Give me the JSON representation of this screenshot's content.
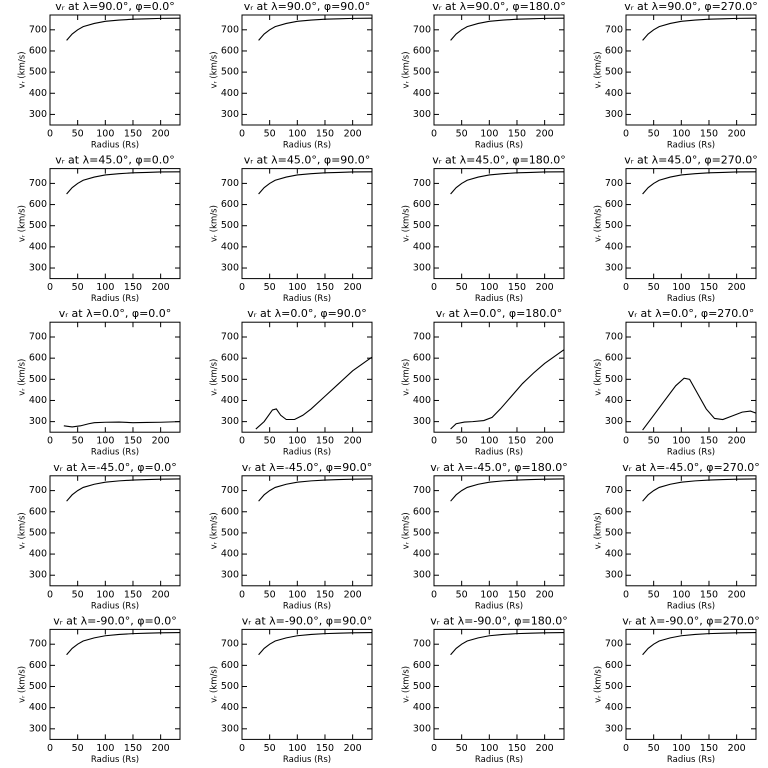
{
  "chart_data": [
    {
      "type": "line",
      "title": "vᵣ at λ=90.0°, φ=0.0°",
      "xlabel": "Radius (Rs)",
      "ylabel": "vᵣ (km/s)",
      "x": [
        30,
        40,
        50,
        60,
        80,
        100,
        125,
        150,
        175,
        200,
        235
      ],
      "values": [
        650,
        680,
        700,
        715,
        730,
        740,
        746,
        750,
        752,
        754,
        755
      ],
      "color": "#000000",
      "xlim": [
        0,
        235
      ],
      "ylim": [
        250,
        770
      ],
      "xticks": [
        0,
        50,
        100,
        150,
        200
      ],
      "yticks": [
        300,
        400,
        500,
        600,
        700
      ]
    },
    {
      "type": "line",
      "title": "vᵣ at λ=90.0°, φ=90.0°",
      "xlabel": "Radius (Rs)",
      "ylabel": "vᵣ (km/s)",
      "x": [
        30,
        40,
        50,
        60,
        80,
        100,
        125,
        150,
        175,
        200,
        235
      ],
      "values": [
        650,
        680,
        700,
        715,
        730,
        740,
        746,
        750,
        752,
        754,
        755
      ],
      "color": "#000000",
      "xlim": [
        0,
        235
      ],
      "ylim": [
        250,
        770
      ],
      "xticks": [
        0,
        50,
        100,
        150,
        200
      ],
      "yticks": [
        300,
        400,
        500,
        600,
        700
      ]
    },
    {
      "type": "line",
      "title": "vᵣ at λ=90.0°, φ=180.0°",
      "xlabel": "Radius (Rs)",
      "ylabel": "vᵣ (km/s)",
      "x": [
        30,
        40,
        50,
        60,
        80,
        100,
        125,
        150,
        175,
        200,
        235
      ],
      "values": [
        650,
        680,
        700,
        715,
        730,
        740,
        746,
        750,
        752,
        754,
        755
      ],
      "color": "#000000",
      "xlim": [
        0,
        235
      ],
      "ylim": [
        250,
        770
      ],
      "xticks": [
        0,
        50,
        100,
        150,
        200
      ],
      "yticks": [
        300,
        400,
        500,
        600,
        700
      ]
    },
    {
      "type": "line",
      "title": "vᵣ at λ=90.0°, φ=270.0°",
      "xlabel": "Radius (Rs)",
      "ylabel": "vᵣ (km/s)",
      "x": [
        30,
        40,
        50,
        60,
        80,
        100,
        125,
        150,
        175,
        200,
        235
      ],
      "values": [
        650,
        680,
        700,
        715,
        730,
        740,
        746,
        750,
        752,
        754,
        755
      ],
      "color": "#000000",
      "xlim": [
        0,
        235
      ],
      "ylim": [
        250,
        770
      ],
      "xticks": [
        0,
        50,
        100,
        150,
        200
      ],
      "yticks": [
        300,
        400,
        500,
        600,
        700
      ]
    },
    {
      "type": "line",
      "title": "vᵣ at λ=45.0°, φ=0.0°",
      "xlabel": "Radius (Rs)",
      "ylabel": "vᵣ (km/s)",
      "x": [
        30,
        40,
        50,
        60,
        80,
        100,
        125,
        150,
        175,
        200,
        235
      ],
      "values": [
        650,
        680,
        700,
        715,
        730,
        740,
        746,
        750,
        752,
        754,
        755
      ],
      "color": "#000000",
      "xlim": [
        0,
        235
      ],
      "ylim": [
        250,
        770
      ],
      "xticks": [
        0,
        50,
        100,
        150,
        200
      ],
      "yticks": [
        300,
        400,
        500,
        600,
        700
      ]
    },
    {
      "type": "line",
      "title": "vᵣ at λ=45.0°, φ=90.0°",
      "xlabel": "Radius (Rs)",
      "ylabel": "vᵣ (km/s)",
      "x": [
        30,
        40,
        50,
        60,
        80,
        100,
        125,
        150,
        175,
        200,
        235
      ],
      "values": [
        650,
        680,
        700,
        715,
        730,
        740,
        746,
        750,
        752,
        754,
        755
      ],
      "color": "#000000",
      "xlim": [
        0,
        235
      ],
      "ylim": [
        250,
        770
      ],
      "xticks": [
        0,
        50,
        100,
        150,
        200
      ],
      "yticks": [
        300,
        400,
        500,
        600,
        700
      ]
    },
    {
      "type": "line",
      "title": "vᵣ at λ=45.0°, φ=180.0°",
      "xlabel": "Radius (Rs)",
      "ylabel": "vᵣ (km/s)",
      "x": [
        30,
        40,
        50,
        60,
        80,
        100,
        125,
        150,
        175,
        200,
        235
      ],
      "values": [
        650,
        680,
        700,
        715,
        730,
        740,
        746,
        750,
        752,
        754,
        755
      ],
      "color": "#000000",
      "xlim": [
        0,
        235
      ],
      "ylim": [
        250,
        770
      ],
      "xticks": [
        0,
        50,
        100,
        150,
        200
      ],
      "yticks": [
        300,
        400,
        500,
        600,
        700
      ]
    },
    {
      "type": "line",
      "title": "vᵣ at λ=45.0°, φ=270.0°",
      "xlabel": "Radius (Rs)",
      "ylabel": "vᵣ (km/s)",
      "x": [
        30,
        40,
        50,
        60,
        80,
        100,
        125,
        150,
        175,
        200,
        235
      ],
      "values": [
        650,
        680,
        700,
        715,
        730,
        740,
        746,
        750,
        752,
        754,
        755
      ],
      "color": "#000000",
      "xlim": [
        0,
        235
      ],
      "ylim": [
        250,
        770
      ],
      "xticks": [
        0,
        50,
        100,
        150,
        200
      ],
      "yticks": [
        300,
        400,
        500,
        600,
        700
      ]
    },
    {
      "type": "line",
      "title": "vᵣ at λ=0.0°, φ=0.0°",
      "xlabel": "Radius (Rs)",
      "ylabel": "vᵣ (km/s)",
      "x": [
        25,
        40,
        55,
        70,
        80,
        100,
        125,
        150,
        175,
        200,
        235
      ],
      "values": [
        280,
        275,
        280,
        290,
        295,
        297,
        298,
        295,
        296,
        297,
        300
      ],
      "color": "#000000",
      "xlim": [
        0,
        235
      ],
      "ylim": [
        250,
        770
      ],
      "xticks": [
        0,
        50,
        100,
        150,
        200
      ],
      "yticks": [
        300,
        400,
        500,
        600,
        700
      ]
    },
    {
      "type": "line",
      "title": "vᵣ at λ=0.0°, φ=90.0°",
      "xlabel": "Radius (Rs)",
      "ylabel": "vᵣ (km/s)",
      "x": [
        25,
        40,
        55,
        62,
        70,
        80,
        95,
        110,
        125,
        150,
        175,
        200,
        235
      ],
      "values": [
        265,
        300,
        355,
        360,
        330,
        310,
        310,
        330,
        360,
        420,
        480,
        540,
        605
      ],
      "color": "#000000",
      "xlim": [
        0,
        235
      ],
      "ylim": [
        250,
        770
      ],
      "xticks": [
        0,
        50,
        100,
        150,
        200
      ],
      "yticks": [
        300,
        400,
        500,
        600,
        700
      ]
    },
    {
      "type": "line",
      "title": "vᵣ at λ=0.0°, φ=180.0°",
      "xlabel": "Radius (Rs)",
      "ylabel": "vᵣ (km/s)",
      "x": [
        30,
        40,
        55,
        70,
        90,
        105,
        120,
        140,
        160,
        180,
        200,
        235
      ],
      "values": [
        265,
        290,
        298,
        300,
        305,
        320,
        360,
        420,
        480,
        530,
        575,
        640
      ],
      "color": "#000000",
      "xlim": [
        0,
        235
      ],
      "ylim": [
        250,
        770
      ],
      "xticks": [
        0,
        50,
        100,
        150,
        200
      ],
      "yticks": [
        300,
        400,
        500,
        600,
        700
      ]
    },
    {
      "type": "line",
      "title": "vᵣ at λ=0.0°, φ=270.0°",
      "xlabel": "Radius (Rs)",
      "ylabel": "vᵣ (km/s)",
      "x": [
        30,
        50,
        70,
        90,
        105,
        115,
        130,
        145,
        160,
        175,
        190,
        210,
        225,
        235
      ],
      "values": [
        260,
        330,
        400,
        470,
        505,
        500,
        430,
        360,
        315,
        310,
        325,
        345,
        350,
        340
      ],
      "color": "#000000",
      "xlim": [
        0,
        235
      ],
      "ylim": [
        250,
        770
      ],
      "xticks": [
        0,
        50,
        100,
        150,
        200
      ],
      "yticks": [
        300,
        400,
        500,
        600,
        700
      ]
    },
    {
      "type": "line",
      "title": "vᵣ at λ=-45.0°, φ=0.0°",
      "xlabel": "Radius (Rs)",
      "ylabel": "vᵣ (km/s)",
      "x": [
        30,
        40,
        50,
        60,
        80,
        100,
        125,
        150,
        175,
        200,
        235
      ],
      "values": [
        650,
        680,
        700,
        715,
        730,
        740,
        746,
        750,
        752,
        754,
        755
      ],
      "color": "#000000",
      "xlim": [
        0,
        235
      ],
      "ylim": [
        250,
        770
      ],
      "xticks": [
        0,
        50,
        100,
        150,
        200
      ],
      "yticks": [
        300,
        400,
        500,
        600,
        700
      ]
    },
    {
      "type": "line",
      "title": "vᵣ at λ=-45.0°, φ=90.0°",
      "xlabel": "Radius (Rs)",
      "ylabel": "vᵣ (km/s)",
      "x": [
        30,
        40,
        50,
        60,
        80,
        100,
        125,
        150,
        175,
        200,
        235
      ],
      "values": [
        650,
        680,
        700,
        715,
        730,
        740,
        746,
        750,
        752,
        754,
        755
      ],
      "color": "#000000",
      "xlim": [
        0,
        235
      ],
      "ylim": [
        250,
        770
      ],
      "xticks": [
        0,
        50,
        100,
        150,
        200
      ],
      "yticks": [
        300,
        400,
        500,
        600,
        700
      ]
    },
    {
      "type": "line",
      "title": "vᵣ at λ=-45.0°, φ=180.0°",
      "xlabel": "Radius (Rs)",
      "ylabel": "vᵣ (km/s)",
      "x": [
        30,
        40,
        50,
        60,
        80,
        100,
        125,
        150,
        175,
        200,
        235
      ],
      "values": [
        650,
        680,
        700,
        715,
        730,
        740,
        746,
        750,
        752,
        754,
        755
      ],
      "color": "#000000",
      "xlim": [
        0,
        235
      ],
      "ylim": [
        250,
        770
      ],
      "xticks": [
        0,
        50,
        100,
        150,
        200
      ],
      "yticks": [
        300,
        400,
        500,
        600,
        700
      ]
    },
    {
      "type": "line",
      "title": "vᵣ at λ=-45.0°, φ=270.0°",
      "xlabel": "Radius (Rs)",
      "ylabel": "vᵣ (km/s)",
      "x": [
        30,
        40,
        50,
        60,
        80,
        100,
        125,
        150,
        175,
        200,
        235
      ],
      "values": [
        650,
        680,
        700,
        715,
        730,
        740,
        746,
        750,
        752,
        754,
        755
      ],
      "color": "#000000",
      "xlim": [
        0,
        235
      ],
      "ylim": [
        250,
        770
      ],
      "xticks": [
        0,
        50,
        100,
        150,
        200
      ],
      "yticks": [
        300,
        400,
        500,
        600,
        700
      ]
    },
    {
      "type": "line",
      "title": "vᵣ at λ=-90.0°, φ=0.0°",
      "xlabel": "Radius (Rs)",
      "ylabel": "vᵣ (km/s)",
      "x": [
        30,
        40,
        50,
        60,
        80,
        100,
        125,
        150,
        175,
        200,
        235
      ],
      "values": [
        650,
        680,
        700,
        715,
        730,
        740,
        746,
        750,
        752,
        754,
        755
      ],
      "color": "#000000",
      "xlim": [
        0,
        235
      ],
      "ylim": [
        250,
        770
      ],
      "xticks": [
        0,
        50,
        100,
        150,
        200
      ],
      "yticks": [
        300,
        400,
        500,
        600,
        700
      ]
    },
    {
      "type": "line",
      "title": "vᵣ at λ=-90.0°, φ=90.0°",
      "xlabel": "Radius (Rs)",
      "ylabel": "vᵣ (km/s)",
      "x": [
        30,
        40,
        50,
        60,
        80,
        100,
        125,
        150,
        175,
        200,
        235
      ],
      "values": [
        650,
        680,
        700,
        715,
        730,
        740,
        746,
        750,
        752,
        754,
        755
      ],
      "color": "#000000",
      "xlim": [
        0,
        235
      ],
      "ylim": [
        250,
        770
      ],
      "xticks": [
        0,
        50,
        100,
        150,
        200
      ],
      "yticks": [
        300,
        400,
        500,
        600,
        700
      ]
    },
    {
      "type": "line",
      "title": "vᵣ at λ=-90.0°, φ=180.0°",
      "xlabel": "Radius (Rs)",
      "ylabel": "vᵣ (km/s)",
      "x": [
        30,
        40,
        50,
        60,
        80,
        100,
        125,
        150,
        175,
        200,
        235
      ],
      "values": [
        650,
        680,
        700,
        715,
        730,
        740,
        746,
        750,
        752,
        754,
        755
      ],
      "color": "#000000",
      "xlim": [
        0,
        235
      ],
      "ylim": [
        250,
        770
      ],
      "xticks": [
        0,
        50,
        100,
        150,
        200
      ],
      "yticks": [
        300,
        400,
        500,
        600,
        700
      ]
    },
    {
      "type": "line",
      "title": "vᵣ at λ=-90.0°, φ=270.0°",
      "xlabel": "Radius (Rs)",
      "ylabel": "vᵣ (km/s)",
      "x": [
        30,
        40,
        50,
        60,
        80,
        100,
        125,
        150,
        175,
        200,
        235
      ],
      "values": [
        650,
        680,
        700,
        715,
        730,
        740,
        746,
        750,
        752,
        754,
        755
      ],
      "color": "#000000",
      "xlim": [
        0,
        235
      ],
      "ylim": [
        250,
        770
      ],
      "xticks": [
        0,
        50,
        100,
        150,
        200
      ],
      "yticks": [
        300,
        400,
        500,
        600,
        700
      ]
    }
  ]
}
